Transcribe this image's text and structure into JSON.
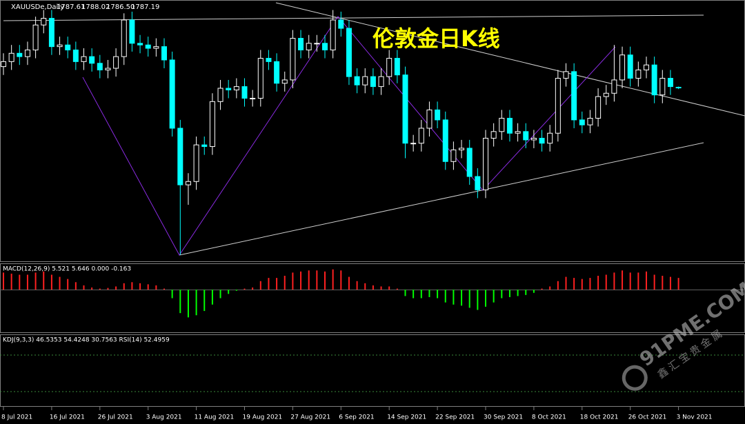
{
  "chart_data": {
    "type": "candlestick",
    "title": "伦敦金日K线",
    "symbol": "XAUUSDe,Daily",
    "ohlc_labels": [
      "1787.61",
      "1788.02",
      "1786.50",
      "1787.19"
    ],
    "macd_label": "MACD(12,26,9) 5.521 5.646 0.000 -0.163",
    "kdj_label": "KDJ(9,3,3) 46.5353 54.4248 30.7563  RSI(14) 52.4959",
    "watermark": "91PME.COM",
    "watermark_sub": "鑫汇宝贵金属",
    "categories": [
      "8 Jul 2021",
      null,
      null,
      null,
      null,
      null,
      "16 Jul 2021",
      null,
      null,
      null,
      null,
      null,
      "26 Jul 2021",
      null,
      null,
      null,
      null,
      null,
      "3 Aug 2021",
      null,
      null,
      null,
      null,
      null,
      "11 Aug 2021",
      null,
      null,
      null,
      null,
      null,
      "19 Aug 2021",
      null,
      null,
      null,
      null,
      null,
      "27 Aug 2021",
      null,
      null,
      null,
      null,
      null,
      "6 Sep 2021",
      null,
      null,
      null,
      null,
      null,
      "14 Sep 2021",
      null,
      null,
      null,
      null,
      null,
      "22 Sep 2021",
      null,
      null,
      null,
      null,
      null,
      "30 Sep 2021",
      null,
      null,
      null,
      null,
      null,
      "8 Oct 2021",
      null,
      null,
      null,
      null,
      null,
      "18 Oct 2021",
      null,
      null,
      null,
      null,
      null,
      "26 Oct 2021",
      null,
      null,
      null,
      null,
      null,
      "3 Nov 2021"
    ],
    "open": [
      1800,
      1803,
      1808,
      1806,
      1810,
      1825,
      1829,
      1812,
      1813,
      1810,
      1803,
      1806,
      1802,
      1798,
      1799,
      1806,
      1828,
      1814,
      1813,
      1811,
      1812,
      1804,
      1763,
      1729,
      1731,
      1753,
      1752,
      1779,
      1787,
      1786,
      1788,
      1781,
      1781,
      1805,
      1803,
      1790,
      1792,
      1817,
      1810,
      1814,
      1814,
      1810,
      1828,
      1823,
      1794,
      1789,
      1794,
      1788,
      1794,
      1805,
      1795,
      1754,
      1754,
      1763,
      1774,
      1768,
      1743,
      1750,
      1751,
      1734,
      1726,
      1757,
      1761,
      1769,
      1760,
      1761,
      1756,
      1757,
      1754,
      1760,
      1793,
      1797,
      1768,
      1765,
      1769,
      1782,
      1784,
      1792,
      1807,
      1793,
      1798,
      1801,
      1783,
      1793,
      1787.61
    ],
    "high": [
      1808,
      1813,
      1813,
      1815,
      1830,
      1834,
      1834,
      1818,
      1818,
      1815,
      1811,
      1811,
      1807,
      1804,
      1811,
      1832,
      1833,
      1819,
      1818,
      1817,
      1817,
      1809,
      1768,
      1736,
      1758,
      1758,
      1784,
      1792,
      1792,
      1793,
      1793,
      1786,
      1810,
      1810,
      1808,
      1797,
      1822,
      1822,
      1819,
      1819,
      1819,
      1834,
      1833,
      1828,
      1799,
      1799,
      1799,
      1799,
      1810,
      1810,
      1800,
      1759,
      1768,
      1779,
      1779,
      1773,
      1755,
      1756,
      1756,
      1739,
      1762,
      1766,
      1774,
      1774,
      1766,
      1766,
      1762,
      1762,
      1765,
      1798,
      1802,
      1802,
      1773,
      1774,
      1787,
      1789,
      1813,
      1812,
      1812,
      1803,
      1806,
      1806,
      1798,
      1798,
      1788.02
    ],
    "low": [
      1795,
      1798,
      1801,
      1801,
      1805,
      1820,
      1807,
      1807,
      1805,
      1798,
      1798,
      1797,
      1793,
      1793,
      1794,
      1801,
      1809,
      1808,
      1806,
      1806,
      1799,
      1758,
      1687,
      1717,
      1726,
      1747,
      1747,
      1774,
      1781,
      1781,
      1776,
      1776,
      1776,
      1798,
      1785,
      1785,
      1787,
      1805,
      1805,
      1809,
      1805,
      1805,
      1818,
      1789,
      1784,
      1784,
      1783,
      1783,
      1789,
      1790,
      1745,
      1749,
      1749,
      1758,
      1763,
      1738,
      1738,
      1745,
      1729,
      1721,
      1721,
      1752,
      1756,
      1755,
      1755,
      1751,
      1751,
      1749,
      1749,
      1755,
      1788,
      1763,
      1760,
      1760,
      1764,
      1777,
      1779,
      1787,
      1788,
      1788,
      1793,
      1778,
      1778,
      1783,
      1786.5
    ],
    "close": [
      1803,
      1808,
      1806,
      1810,
      1825,
      1829,
      1812,
      1813,
      1810,
      1803,
      1806,
      1802,
      1798,
      1799,
      1806,
      1828,
      1814,
      1813,
      1811,
      1812,
      1804,
      1763,
      1729,
      1731,
      1753,
      1752,
      1779,
      1787,
      1786,
      1788,
      1781,
      1781,
      1805,
      1803,
      1790,
      1792,
      1817,
      1810,
      1814,
      1814,
      1810,
      1828,
      1823,
      1794,
      1789,
      1794,
      1788,
      1794,
      1805,
      1795,
      1754,
      1754,
      1763,
      1774,
      1768,
      1743,
      1750,
      1751,
      1734,
      1726,
      1757,
      1761,
      1769,
      1760,
      1761,
      1756,
      1757,
      1754,
      1760,
      1793,
      1797,
      1768,
      1765,
      1769,
      1782,
      1784,
      1792,
      1807,
      1793,
      1798,
      1801,
      1783,
      1793,
      1788,
      1787.19
    ],
    "ylim": [
      1683.5,
      1840
    ],
    "up_color": "#ffffff",
    "down_color": "#00ffff",
    "macd_hist": [
      8,
      7.5,
      7,
      7,
      8,
      8.5,
      7,
      6,
      5,
      3.5,
      2,
      1,
      0.5,
      0.8,
      1.5,
      3,
      3.5,
      3,
      2.5,
      2,
      0.5,
      -4,
      -11,
      -13,
      -12,
      -10,
      -7,
      -4,
      -2,
      -0.5,
      0.5,
      1,
      4,
      5.5,
      5.5,
      6.5,
      8,
      8.5,
      9,
      9,
      8.5,
      9.5,
      9,
      6,
      4,
      3,
      2,
      1.5,
      1.5,
      0.5,
      -3,
      -4,
      -4,
      -3.5,
      -4,
      -6,
      -7,
      -7.5,
      -8.5,
      -9.5,
      -8,
      -6,
      -4,
      -3.5,
      -3,
      -2.5,
      -1.5,
      0.5,
      1.5,
      4,
      6,
      5.5,
      5,
      5.5,
      6.5,
      7,
      8,
      9,
      8,
      8,
      8.5,
      7,
      6.5,
      6,
      5.5
    ],
    "macd_ylim": [
      -20,
      12
    ],
    "macd_pos_color": "#ff2020",
    "macd_neg_color": "#00ff00"
  }
}
